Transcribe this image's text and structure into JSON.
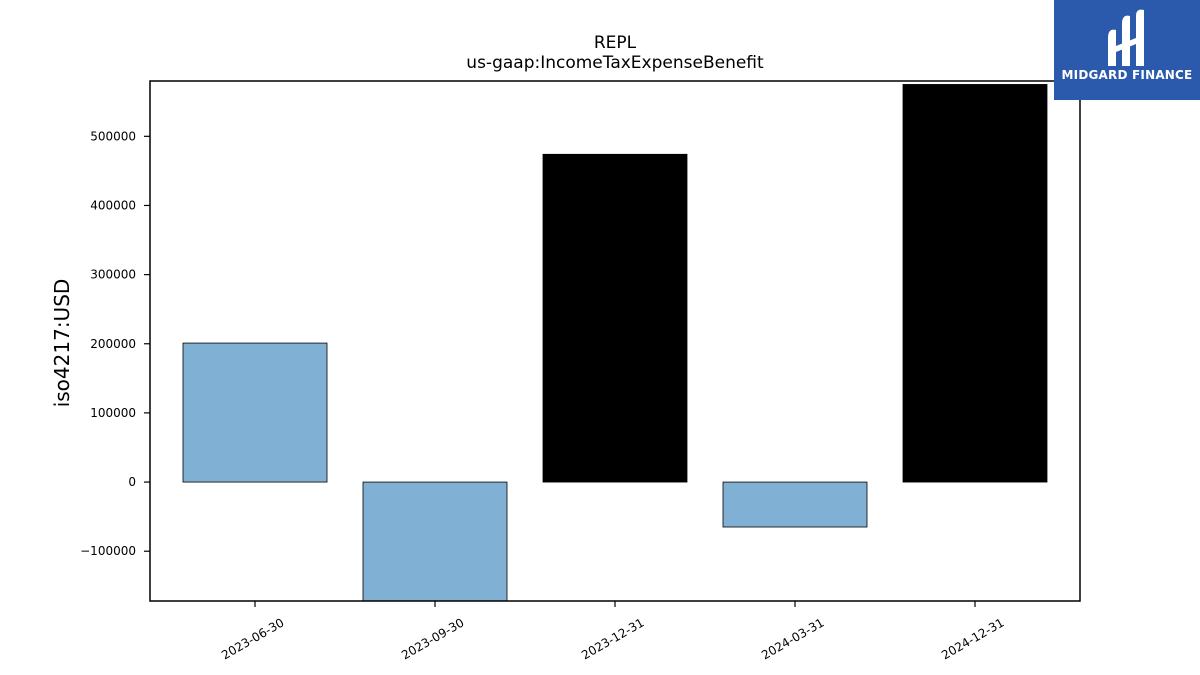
{
  "chart_data": {
    "type": "bar",
    "title": "REPL",
    "subtitle": "us-gaap:IncomeTaxExpenseBenefit",
    "xlabel": "",
    "ylabel": "iso4217:USD",
    "categories": [
      "2023-06-30",
      "2023-09-30",
      "2023-12-31",
      "2024-03-31",
      "2024-12-31"
    ],
    "values": [
      201000,
      -172000,
      474000,
      -65000,
      575000
    ],
    "bar_colors": [
      "#80b0d4",
      "#80b0d4",
      "#000000",
      "#80b0d4",
      "#000000"
    ],
    "yticks": [
      -100000,
      0,
      100000,
      200000,
      300000,
      400000,
      500000
    ],
    "ytick_labels": [
      "−100000",
      "0",
      "100000",
      "200000",
      "300000",
      "400000",
      "500000"
    ],
    "ylim": [
      -172000,
      580000
    ],
    "grid": false,
    "legend": "none"
  },
  "logo": {
    "text": "MIDGARD FINANCE",
    "icon": "midgard-logo-icon",
    "background": "#2b5aad"
  }
}
